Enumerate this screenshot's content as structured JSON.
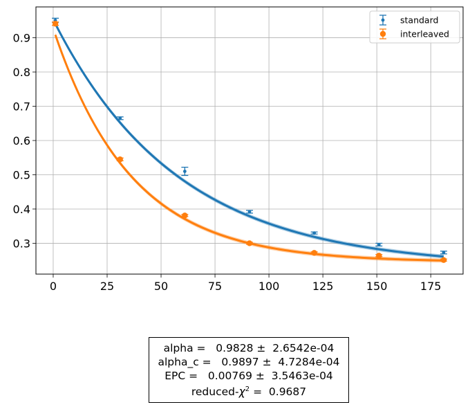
{
  "chart_data": {
    "type": "scatter",
    "title": "",
    "xlabel": "",
    "ylabel": "",
    "xlim": [
      -8,
      190
    ],
    "ylim": [
      0.21,
      0.99
    ],
    "xticks": [
      0,
      25,
      50,
      75,
      100,
      125,
      150,
      175
    ],
    "yticks": [
      0.3,
      0.4,
      0.5,
      0.6,
      0.7,
      0.8,
      0.9
    ],
    "grid": true,
    "legend_position": "top-right",
    "series": [
      {
        "name": "standard",
        "color": "#1f77b4",
        "marker": "small-dot",
        "x": [
          1,
          31,
          61,
          91,
          121,
          151,
          181
        ],
        "y": [
          0.951,
          0.665,
          0.51,
          0.392,
          0.33,
          0.296,
          0.273
        ],
        "err": [
          0.006,
          0.004,
          0.012,
          0.004,
          0.003,
          0.004,
          0.004
        ],
        "fit": {
          "a": 0.723,
          "alpha": 0.9828,
          "b": 0.23,
          "band": 0.006
        }
      },
      {
        "name": "interleaved",
        "color": "#ff7f0e",
        "marker": "large-dot",
        "x": [
          1,
          31,
          61,
          91,
          121,
          151,
          181
        ],
        "y": [
          0.941,
          0.545,
          0.381,
          0.3,
          0.272,
          0.264,
          0.251
        ],
        "err": [
          0.005,
          0.004,
          0.003,
          0.003,
          0.003,
          0.003,
          0.003
        ],
        "fit": {
          "a": 0.682,
          "alpha": 0.9727,
          "b": 0.245,
          "band": 0.006
        }
      }
    ]
  },
  "stats": {
    "alpha": "alpha =   0.9828 ±  2.6542e-04",
    "alpha_c": "alpha_c =   0.9897 ±  4.7284e-04",
    "epc": "EPC =   0.00769 ±  3.5463e-04",
    "chi_prefix": "reduced-",
    "chi_symbol": "χ",
    "chi_exp": "2",
    "chi_value": " =  0.9687"
  }
}
